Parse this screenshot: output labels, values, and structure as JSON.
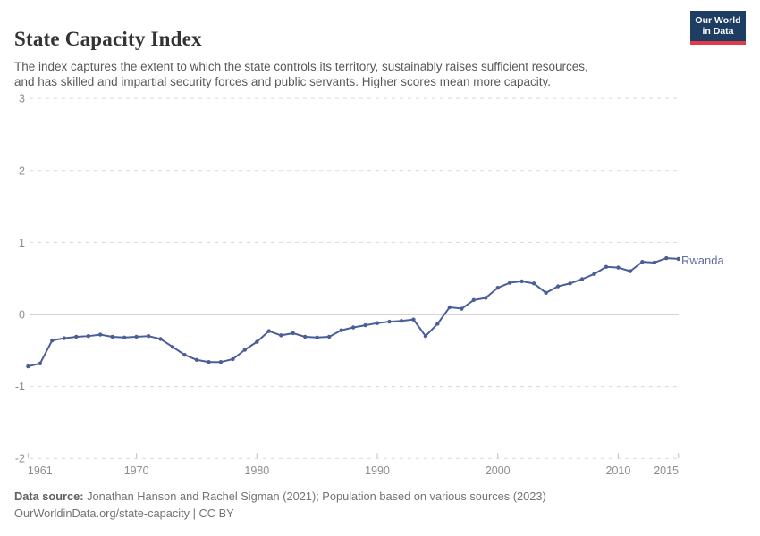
{
  "header": {
    "title": "State Capacity Index",
    "subtitle_line1": "The index captures the extent to which the state controls its territory, sustainably raises sufficient resources,",
    "subtitle_line2": "and has skilled and impartial security forces and public servants. Higher scores mean more capacity."
  },
  "logo": {
    "line1": "Our World",
    "line2": "in Data"
  },
  "footer": {
    "source_label": "Data source:",
    "source_text": "Jonathan Hanson and Rachel Sigman (2021); Population based on various sources (2023)",
    "link_text": "OurWorldinData.org/state-capacity",
    "separator": "|",
    "license_text": "CC BY"
  },
  "colors": {
    "line": "#4a5f98",
    "entity_label": "#5e6f9e",
    "grid": "#d9d9d9",
    "zero_line": "#a8a8a8",
    "tick_text": "#8e8e8e",
    "logo_bg": "#1d3d63",
    "logo_red": "#e0394a"
  },
  "chart_data": {
    "type": "line",
    "title": "State Capacity Index",
    "series_label": "Rwanda",
    "xlabel": "",
    "ylabel": "",
    "xlim": [
      1961,
      2015
    ],
    "ylim": [
      -2,
      3
    ],
    "yticks": [
      3,
      2,
      1,
      0,
      -1,
      -2
    ],
    "xticks": [
      1961,
      1970,
      1980,
      1990,
      2000,
      2010,
      2015
    ],
    "grid": "horizontal-dashed",
    "legend_position": "end-of-line-label",
    "x": [
      1961,
      1962,
      1963,
      1964,
      1965,
      1966,
      1967,
      1968,
      1969,
      1970,
      1971,
      1972,
      1973,
      1974,
      1975,
      1976,
      1977,
      1978,
      1979,
      1980,
      1981,
      1982,
      1983,
      1984,
      1985,
      1986,
      1987,
      1988,
      1989,
      1990,
      1991,
      1992,
      1993,
      1994,
      1995,
      1996,
      1997,
      1998,
      1999,
      2000,
      2001,
      2002,
      2003,
      2004,
      2005,
      2006,
      2007,
      2008,
      2009,
      2010,
      2011,
      2012,
      2013,
      2014,
      2015
    ],
    "y": [
      -0.72,
      -0.68,
      -0.36,
      -0.33,
      -0.31,
      -0.3,
      -0.28,
      -0.31,
      -0.32,
      -0.31,
      -0.3,
      -0.34,
      -0.45,
      -0.56,
      -0.63,
      -0.66,
      -0.66,
      -0.62,
      -0.49,
      -0.38,
      -0.23,
      -0.29,
      -0.26,
      -0.31,
      -0.32,
      -0.31,
      -0.22,
      -0.18,
      -0.15,
      -0.12,
      -0.1,
      -0.09,
      -0.07,
      -0.3,
      -0.13,
      0.1,
      0.08,
      0.2,
      0.23,
      0.37,
      0.44,
      0.46,
      0.43,
      0.3,
      0.39,
      0.43,
      0.49,
      0.56,
      0.66,
      0.65,
      0.6,
      0.73,
      0.72,
      0.78,
      0.77
    ]
  }
}
